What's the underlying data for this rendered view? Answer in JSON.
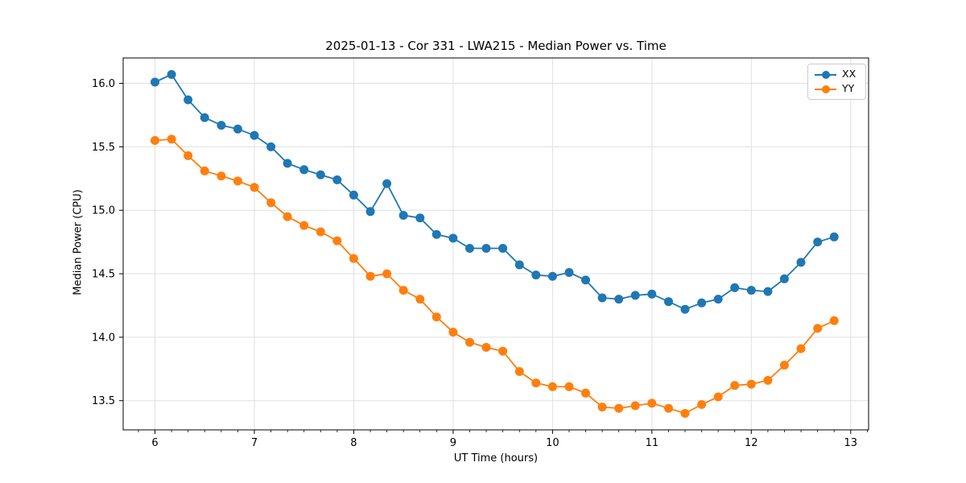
{
  "chart_data": {
    "type": "line",
    "title": "2025-01-13 - Cor 331 - LWA215 - Median Power vs. Time",
    "xlabel": "UT Time (hours)",
    "ylabel": "Median Power (CPU)",
    "xlim": [
      5.68,
      13.18
    ],
    "ylim": [
      13.27,
      16.2
    ],
    "xticks": [
      6,
      7,
      8,
      9,
      10,
      11,
      12,
      13
    ],
    "xtick_labels": [
      "6",
      "7",
      "8",
      "9",
      "10",
      "11",
      "12",
      "13"
    ],
    "yticks": [
      13.5,
      14.0,
      14.5,
      15.0,
      15.5,
      16.0
    ],
    "ytick_labels": [
      "13.5",
      "14.0",
      "14.5",
      "15.0",
      "15.5",
      "16.0"
    ],
    "x_minor_tick_step": 0.1666667,
    "grid": true,
    "grid_color": "#e0e0e0",
    "legend_position": "upper right",
    "x": [
      6.0,
      6.167,
      6.333,
      6.5,
      6.667,
      6.833,
      7.0,
      7.167,
      7.333,
      7.5,
      7.667,
      7.833,
      8.0,
      8.167,
      8.333,
      8.5,
      8.667,
      8.833,
      9.0,
      9.167,
      9.333,
      9.5,
      9.667,
      9.833,
      10.0,
      10.167,
      10.333,
      10.5,
      10.667,
      10.833,
      11.0,
      11.167,
      11.333,
      11.5,
      11.667,
      11.833,
      12.0,
      12.167,
      12.333,
      12.5,
      12.667,
      12.833
    ],
    "series": [
      {
        "name": "XX",
        "color": "#1f77b4",
        "values": [
          16.01,
          16.07,
          15.87,
          15.73,
          15.67,
          15.64,
          15.59,
          15.5,
          15.37,
          15.32,
          15.28,
          15.24,
          15.12,
          14.99,
          15.21,
          14.96,
          14.94,
          14.81,
          14.78,
          14.7,
          14.7,
          14.7,
          14.57,
          14.49,
          14.48,
          14.51,
          14.45,
          14.31,
          14.3,
          14.33,
          14.34,
          14.28,
          14.22,
          14.27,
          14.3,
          14.39,
          14.37,
          14.36,
          14.46,
          14.59,
          14.75,
          14.79
        ]
      },
      {
        "name": "YY",
        "color": "#ff7f0e",
        "values": [
          15.55,
          15.56,
          15.43,
          15.31,
          15.27,
          15.23,
          15.18,
          15.06,
          14.95,
          14.88,
          14.83,
          14.76,
          14.62,
          14.48,
          14.5,
          14.37,
          14.3,
          14.16,
          14.04,
          13.96,
          13.92,
          13.89,
          13.73,
          13.64,
          13.61,
          13.61,
          13.56,
          13.45,
          13.44,
          13.46,
          13.48,
          13.44,
          13.4,
          13.47,
          13.53,
          13.62,
          13.63,
          13.66,
          13.78,
          13.91,
          14.07,
          14.13
        ]
      }
    ]
  }
}
